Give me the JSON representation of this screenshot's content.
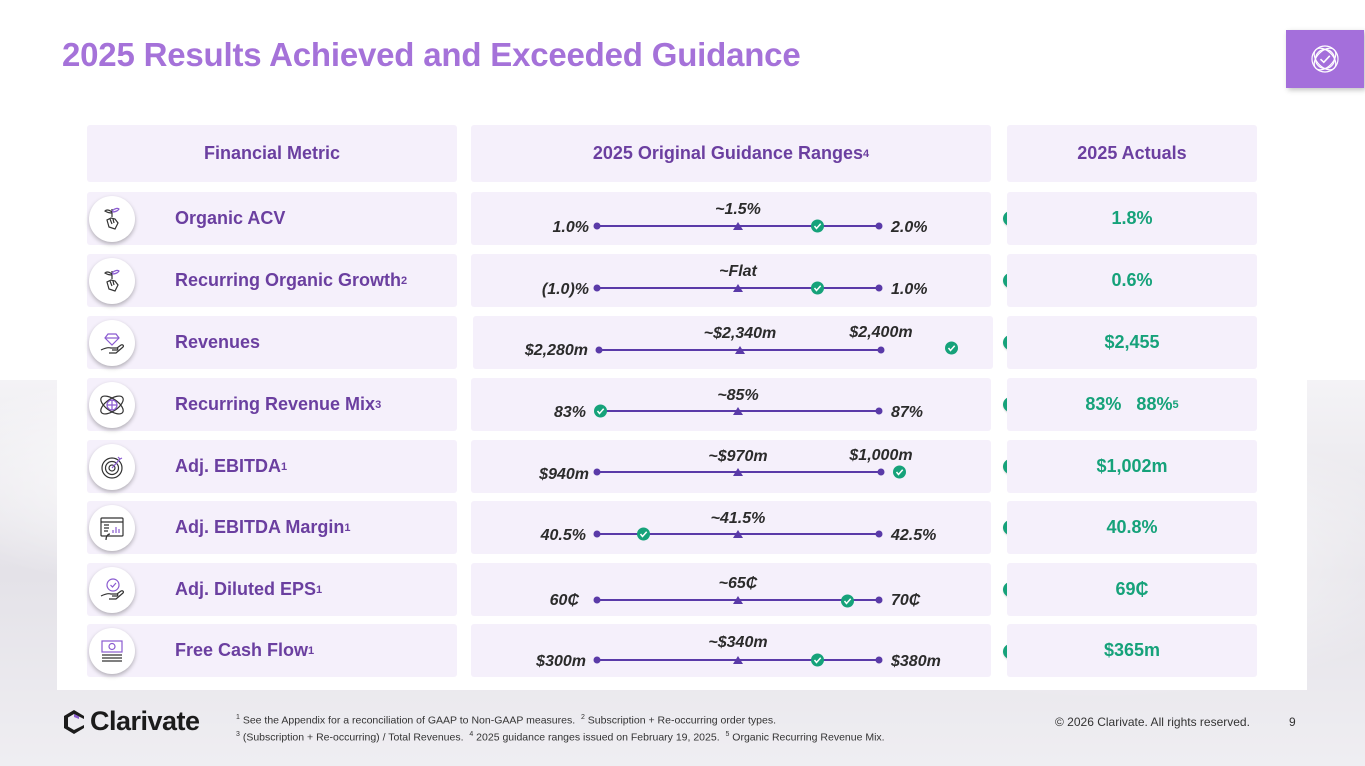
{
  "title": "2025 Results Achieved and Exceeded Guidance",
  "colors": {
    "accent": "#a572d9",
    "line": "#5a3aa8",
    "check": "#16a27a"
  },
  "headers": {
    "metric": "Financial Metric",
    "guidance": "2025 Original Guidance Ranges",
    "guidance_sup": "4",
    "actuals": "2025 Actuals"
  },
  "rows": [
    {
      "icon": "hand-plant-icon",
      "label": "Organic ACV",
      "sup": "",
      "low": "1.0%",
      "mid": "~1.5%",
      "high": "2.0%",
      "actual": "1.8%",
      "actual_sup": "",
      "actual_position": 0.75
    },
    {
      "icon": "hand-plant-icon",
      "label": "Recurring Organic Growth",
      "sup": "2",
      "low": "(1.0)%",
      "mid": "~Flat",
      "high": "1.0%",
      "actual": "0.6%",
      "actual_sup": "",
      "actual_position": 0.8
    },
    {
      "icon": "hand-diamond-icon",
      "label": "Revenues",
      "sup": "",
      "low": "$2,280m",
      "mid": "~$2,340m",
      "high": "$2,400m",
      "actual": "$2,455",
      "actual_sup": "",
      "actual_position": 1.25
    },
    {
      "icon": "globe-orbit-icon",
      "label": "Recurring Revenue Mix",
      "sup": "3",
      "low": "83%",
      "mid": "~85%",
      "high": "87%",
      "actual": "83%   88%",
      "actual_sup": "5",
      "actual_position": 0.0
    },
    {
      "icon": "target-icon",
      "label": "Adj. EBITDA",
      "sup": "1",
      "low": "$940m",
      "mid": "~$970m",
      "high": "$1,000m",
      "actual": "$1,002m",
      "actual_sup": "",
      "actual_position": 1.03
    },
    {
      "icon": "dashboard-chart-icon",
      "label": "Adj. EBITDA Margin",
      "sup": "1",
      "low": "40.5%",
      "mid": "~41.5%",
      "high": "42.5%",
      "actual": "40.8%",
      "actual_sup": "",
      "actual_position": 0.15
    },
    {
      "icon": "hand-check-icon",
      "label": "Adj. Diluted EPS",
      "sup": "1",
      "low": "60₵",
      "mid": "~65₵",
      "high": "70₵",
      "actual": "69₵",
      "actual_sup": "",
      "actual_position": 0.9
    },
    {
      "icon": "cash-stack-icon",
      "label": "Free Cash Flow",
      "sup": "1",
      "low": "$300m",
      "mid": "~$340m",
      "high": "$380m",
      "actual": "$365m",
      "actual_sup": "",
      "actual_position": 0.75
    }
  ],
  "footer": {
    "logo_text": "Clarivate",
    "note1_sup1": "1",
    "note1": " See the Appendix for a reconciliation of GAAP to Non-GAAP measures.  ",
    "note1_sup2": "2",
    "note1b": " Subscription + Re-occurring order types.",
    "note2_sup3": "3",
    "note2": " (Subscription + Re-occurring) / Total Revenues.  ",
    "note2_sup4": "4",
    "note2b": " 2025 guidance ranges issued on February 19, 2025.  ",
    "note2_sup5": "5",
    "note2c": " Organic Recurring Revenue Mix.",
    "copyright": "© 2026 Clarivate. All rights reserved.",
    "page": "9"
  }
}
